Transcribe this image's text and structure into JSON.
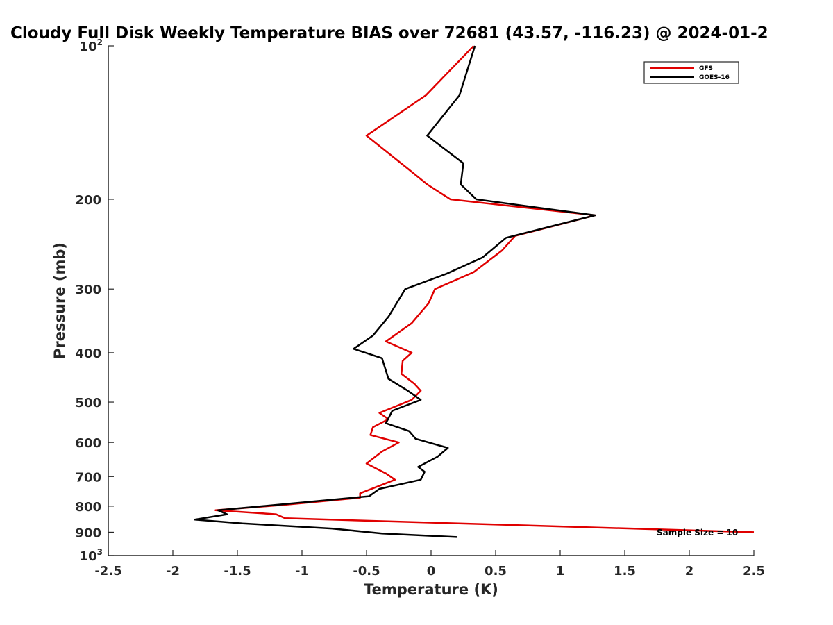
{
  "chart_data": {
    "type": "line",
    "title": "Cloudy Full Disk Weekly Temperature BIAS over 72681 (43.57, -116.23) @ 2024-01-2",
    "xlabel": "Temperature (K)",
    "ylabel": "Pressure (mb)",
    "xlim": [
      -2.5,
      2.5
    ],
    "ylim": [
      100,
      1000
    ],
    "y_scale": "log",
    "y_reversed": true,
    "grid": false,
    "legend_position": "top-right",
    "x_ticks": [
      "-2.5",
      "-2",
      "-1.5",
      "-1",
      "-0.5",
      "0",
      "0.5",
      "1",
      "1.5",
      "2",
      "2.5"
    ],
    "x_tick_values": [
      -2.5,
      -2,
      -1.5,
      -1,
      -0.5,
      0,
      0.5,
      1,
      1.5,
      2,
      2.5
    ],
    "y_ticks": [
      {
        "value": 100,
        "base": "10",
        "exp": "2"
      },
      {
        "value": 200,
        "base": "200",
        "exp": ""
      },
      {
        "value": 300,
        "base": "300",
        "exp": ""
      },
      {
        "value": 400,
        "base": "400",
        "exp": ""
      },
      {
        "value": 500,
        "base": "500",
        "exp": ""
      },
      {
        "value": 600,
        "base": "600",
        "exp": ""
      },
      {
        "value": 700,
        "base": "700",
        "exp": ""
      },
      {
        "value": 800,
        "base": "800",
        "exp": ""
      },
      {
        "value": 900,
        "base": "900",
        "exp": ""
      },
      {
        "value": 1000,
        "base": "10",
        "exp": "3"
      }
    ],
    "annotation": "Sample Size = 10",
    "series": [
      {
        "name": "GFS",
        "color": "#e00000",
        "points": [
          [
            0.33,
            100
          ],
          [
            -0.04,
            125
          ],
          [
            -0.5,
            150
          ],
          [
            -0.17,
            175
          ],
          [
            -0.03,
            187
          ],
          [
            0.15,
            200
          ],
          [
            1.27,
            215
          ],
          [
            0.65,
            236
          ],
          [
            0.55,
            252
          ],
          [
            0.33,
            278
          ],
          [
            0.03,
            300
          ],
          [
            -0.02,
            320
          ],
          [
            -0.15,
            350
          ],
          [
            -0.35,
            380
          ],
          [
            -0.15,
            400
          ],
          [
            -0.22,
            415
          ],
          [
            -0.23,
            440
          ],
          [
            -0.13,
            460
          ],
          [
            -0.08,
            475
          ],
          [
            -0.15,
            495
          ],
          [
            -0.4,
            525
          ],
          [
            -0.33,
            540
          ],
          [
            -0.45,
            560
          ],
          [
            -0.47,
            580
          ],
          [
            -0.25,
            600
          ],
          [
            -0.38,
            625
          ],
          [
            -0.5,
            660
          ],
          [
            -0.35,
            690
          ],
          [
            -0.28,
            710
          ],
          [
            -0.55,
            755
          ],
          [
            -0.55,
            770
          ],
          [
            -1.13,
            795
          ],
          [
            -1.67,
            815
          ],
          [
            -1.2,
            830
          ],
          [
            -1.13,
            845
          ],
          [
            2.5,
            900
          ]
        ]
      },
      {
        "name": "GOES-16",
        "color": "#000000",
        "points": [
          [
            0.34,
            100
          ],
          [
            0.22,
            125
          ],
          [
            -0.03,
            150
          ],
          [
            0.25,
            170
          ],
          [
            0.23,
            187
          ],
          [
            0.35,
            200
          ],
          [
            1.27,
            215
          ],
          [
            0.58,
            238
          ],
          [
            0.4,
            260
          ],
          [
            0.12,
            280
          ],
          [
            -0.2,
            300
          ],
          [
            -0.33,
            340
          ],
          [
            -0.45,
            370
          ],
          [
            -0.6,
            393
          ],
          [
            -0.38,
            410
          ],
          [
            -0.33,
            450
          ],
          [
            -0.18,
            475
          ],
          [
            -0.08,
            495
          ],
          [
            -0.3,
            520
          ],
          [
            -0.35,
            550
          ],
          [
            -0.17,
            570
          ],
          [
            -0.12,
            590
          ],
          [
            0.13,
            615
          ],
          [
            0.05,
            640
          ],
          [
            -0.1,
            670
          ],
          [
            -0.05,
            685
          ],
          [
            -0.08,
            710
          ],
          [
            -0.4,
            740
          ],
          [
            -0.48,
            765
          ],
          [
            -1.65,
            815
          ],
          [
            -1.58,
            830
          ],
          [
            -1.83,
            850
          ],
          [
            -1.46,
            865
          ],
          [
            -0.77,
            885
          ],
          [
            -0.38,
            905
          ],
          [
            0.2,
            920
          ]
        ]
      }
    ]
  }
}
